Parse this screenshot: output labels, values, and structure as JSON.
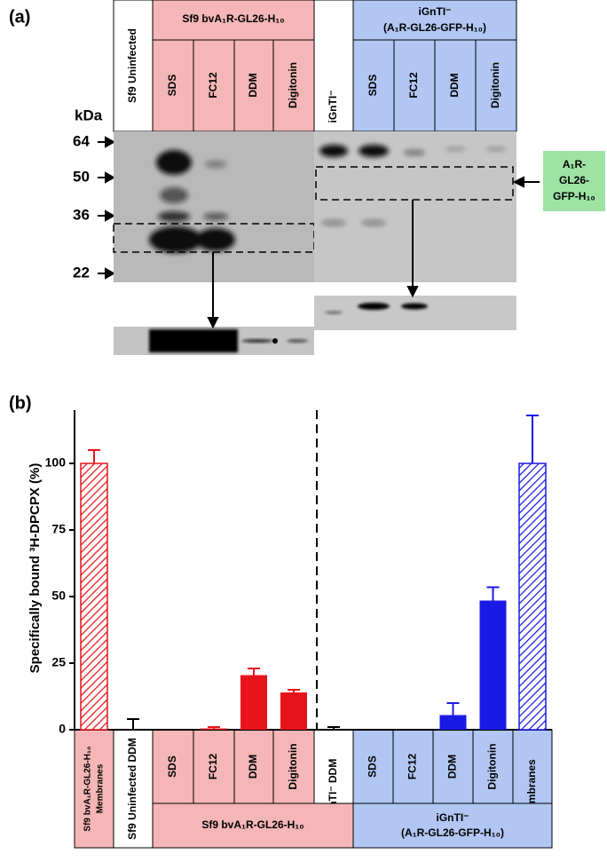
{
  "panel_a": {
    "label": "(a)",
    "unit": "kDa",
    "markers": [
      64,
      50,
      36,
      22
    ],
    "lane_uninfected": "Sf9 Uninfected",
    "group_sf9": "Sf9 bvA₁R-GL26-H₁₀",
    "lanes_sf9": [
      "SDS",
      "FC12",
      "DDM",
      "Digitonin"
    ],
    "lane_ignti": "iGnTI⁻",
    "group_ignti": [
      "iGnTI⁻",
      "(A₁R-GL26-GFP-H₁₀)"
    ],
    "lanes_ignti": [
      "SDS",
      "FC12",
      "DDM",
      "Digitonin"
    ],
    "band_label": [
      "A₁R-",
      "GL26-",
      "GFP-H₁₀"
    ]
  },
  "chart_data": {
    "type": "bar",
    "label": "(b)",
    "y_label": "Specifically bound ³H-DPCPX (%)",
    "categories": [
      [
        "Sf9 bvA₁R-GL26-H₁₀",
        "Membranes"
      ],
      "Sf9 Uninfected DDM",
      "SDS",
      "FC12",
      "DDM",
      "Digitonin",
      "iGnTI⁻ DDM",
      "SDS",
      "FC12",
      "DDM",
      "Digitonin",
      "Membranes"
    ],
    "values": [
      100,
      0,
      0,
      0.5,
      20.5,
      14,
      0,
      0,
      0,
      5.5,
      48.5,
      100
    ],
    "errors": [
      5,
      4,
      null,
      0.5,
      2.5,
      1,
      1,
      null,
      null,
      4.5,
      5,
      18
    ],
    "colors": [
      "#e8141c",
      "#000000",
      "#e8141c",
      "#e8141c",
      "#e8141c",
      "#e8141c",
      "#000000",
      "#1a1ae6",
      "#1a1ae6",
      "#1a1ae6",
      "#1a1ae6",
      "#1a1ae6"
    ],
    "hatched": [
      true,
      false,
      false,
      false,
      false,
      false,
      false,
      false,
      false,
      false,
      false,
      true
    ],
    "groups": [
      "Sf9 bvA₁R-GL26-H₁₀",
      [
        "iGnTI⁻",
        "(A₁R-GL26-GFP-H₁₀)"
      ]
    ],
    "ylim": [
      0,
      120
    ],
    "yticks": [
      0,
      25,
      50,
      75,
      100
    ]
  }
}
